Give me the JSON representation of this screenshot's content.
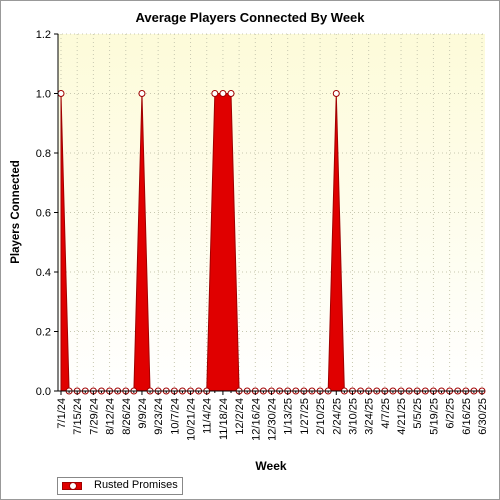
{
  "chart_data": {
    "type": "area",
    "title": "Average Players Connected By Week",
    "xlabel": "Week",
    "ylabel": "Players Connected",
    "ylim": [
      0,
      1.2
    ],
    "yticks": [
      "0.0",
      "0.2",
      "0.4",
      "0.6",
      "0.8",
      "1.0",
      "1.2"
    ],
    "grid": true,
    "legend_position": "bottom-left",
    "background_colors": {
      "plot_top": "#fdfbd9",
      "plot_bottom": "#ffffff",
      "series": "#e00000",
      "series_edge": "#a00000"
    },
    "categories": [
      "7/1/24",
      "7/8/24",
      "7/15/24",
      "7/22/24",
      "7/29/24",
      "8/5/24",
      "8/12/24",
      "8/19/24",
      "8/26/24",
      "9/2/24",
      "9/9/24",
      "9/16/24",
      "9/23/24",
      "9/30/24",
      "10/7/24",
      "10/14/24",
      "10/21/24",
      "10/28/24",
      "11/4/24",
      "11/11/24",
      "11/18/24",
      "11/25/24",
      "12/2/24",
      "12/9/24",
      "12/16/24",
      "12/23/24",
      "12/30/24",
      "1/6/25",
      "1/13/25",
      "1/20/25",
      "1/27/25",
      "2/3/25",
      "2/10/25",
      "2/17/25",
      "2/24/25",
      "3/3/25",
      "3/10/25",
      "3/17/25",
      "3/24/25",
      "3/31/25",
      "4/7/25",
      "4/14/25",
      "4/21/25",
      "4/28/25",
      "5/5/25",
      "5/12/25",
      "5/19/25",
      "5/26/25",
      "6/2/25",
      "6/9/25",
      "6/16/25",
      "6/23/25",
      "6/30/25"
    ],
    "xtick_labels": [
      "7/1/24",
      "7/15/24",
      "7/29/24",
      "8/12/24",
      "8/26/24",
      "9/9/24",
      "9/23/24",
      "10/7/24",
      "10/21/24",
      "11/4/24",
      "11/18/24",
      "12/2/24",
      "12/16/24",
      "12/30/24",
      "1/13/25",
      "1/27/25",
      "2/10/25",
      "2/24/25",
      "3/10/25",
      "3/24/25",
      "4/7/25",
      "4/21/25",
      "5/5/25",
      "5/19/25",
      "6/2/25",
      "6/16/25",
      "6/30/25"
    ],
    "series": [
      {
        "name": "Rusted Promises",
        "values": [
          1,
          0,
          0,
          0,
          0,
          0,
          0,
          0,
          0,
          0,
          1,
          0,
          0,
          0,
          0,
          0,
          0,
          0,
          0,
          1,
          1,
          1,
          0,
          0,
          0,
          0,
          0,
          0,
          0,
          0,
          0,
          0,
          0,
          0,
          1,
          0,
          0,
          0,
          0,
          0,
          0,
          0,
          0,
          0,
          0,
          0,
          0,
          0,
          0,
          0,
          0,
          0,
          0
        ]
      }
    ]
  }
}
